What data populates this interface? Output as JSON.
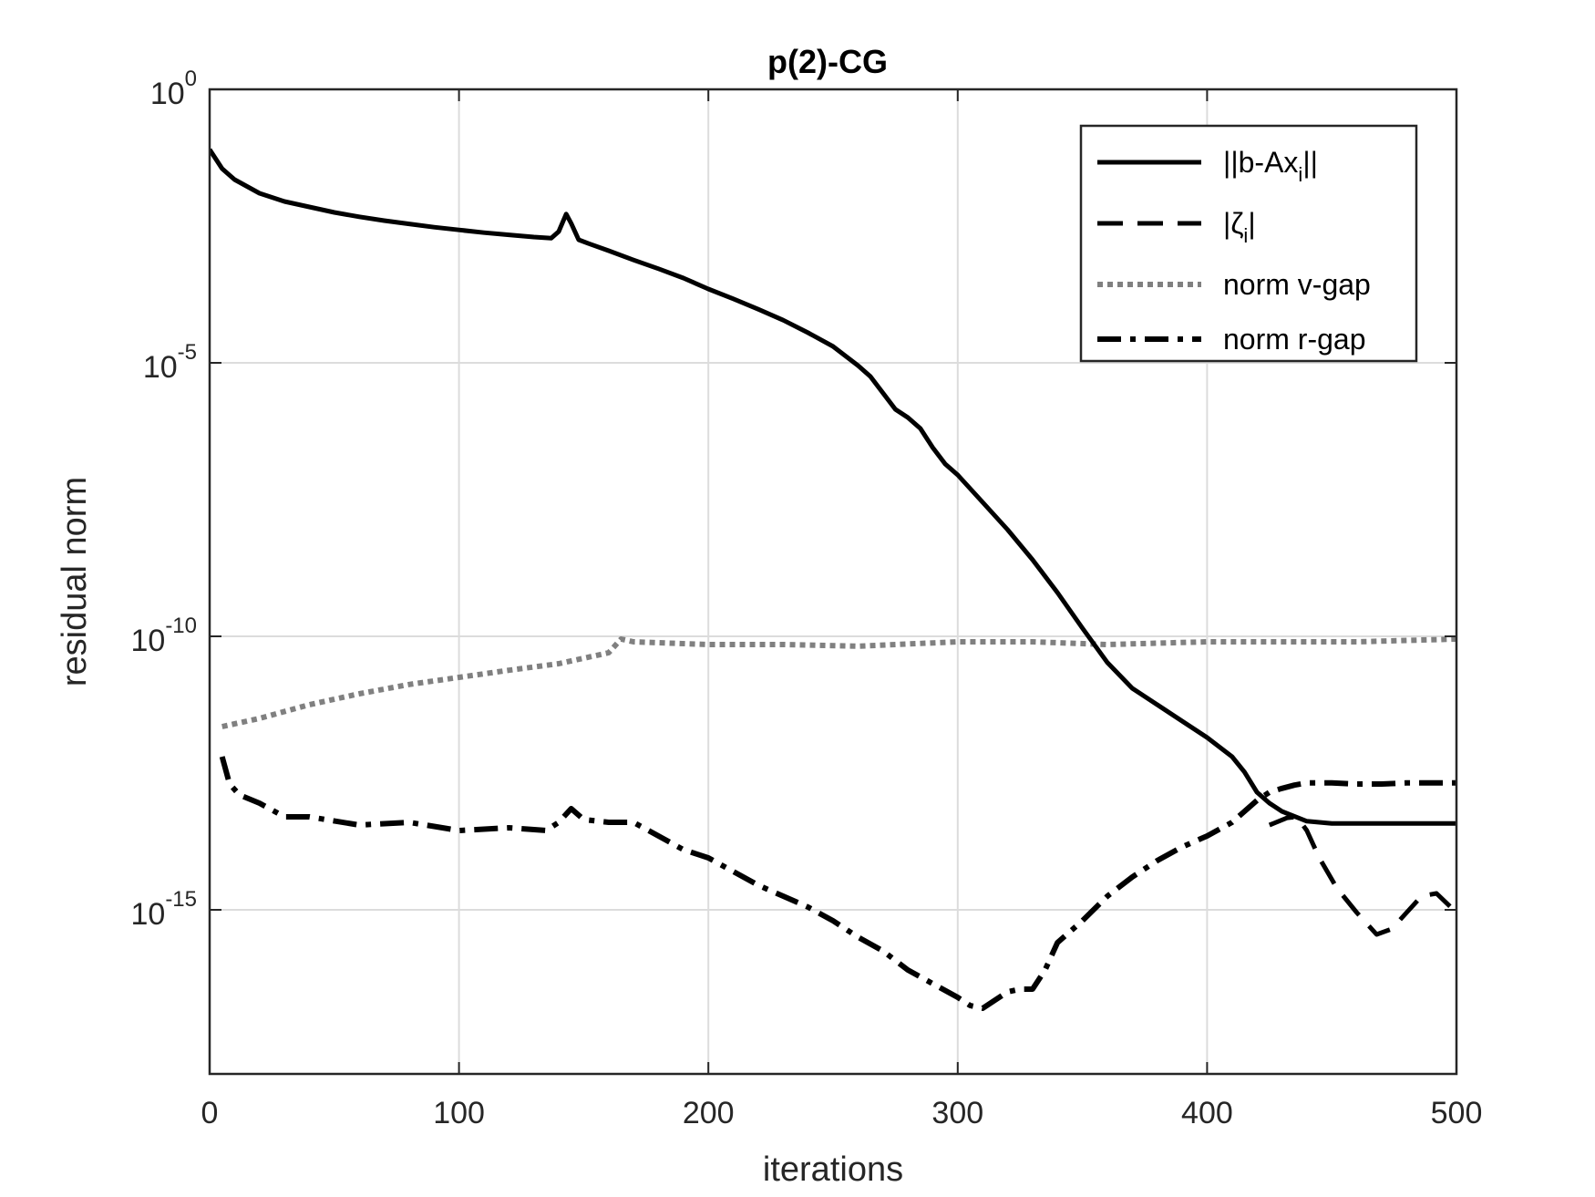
{
  "chart_data": {
    "type": "line",
    "title": "p(2)-CG",
    "xlabel": "iterations",
    "ylabel": "residual norm",
    "xlim": [
      0,
      500
    ],
    "ylim_log10": [
      -18,
      0
    ],
    "x_ticks": [
      0,
      100,
      200,
      300,
      400,
      500
    ],
    "x_tick_labels": [
      "0",
      "100",
      "200",
      "300",
      "400",
      "500"
    ],
    "y_ticks_log10": [
      0,
      -5,
      -10,
      -15
    ],
    "y_tick_labels": [
      {
        "base": "10",
        "exp": "0"
      },
      {
        "base": "10",
        "exp": "-5"
      },
      {
        "base": "10",
        "exp": "-10"
      },
      {
        "base": "10",
        "exp": "-15"
      }
    ],
    "grid": true,
    "legend_position": "top-right",
    "legend": [
      {
        "key": "residual",
        "text": "||b-Ax",
        "sub": "i",
        "suffix": "||"
      },
      {
        "key": "zeta",
        "text": "|ζ",
        "sub": "i",
        "suffix": "|"
      },
      {
        "key": "vgap",
        "text": "norm v-gap",
        "sub": "",
        "suffix": ""
      },
      {
        "key": "rgap",
        "text": "norm r-gap",
        "sub": "",
        "suffix": ""
      }
    ],
    "series": [
      {
        "name": "||b-Ax_i||",
        "key": "residual",
        "style": "solid",
        "color": "#000000",
        "x": [
          0,
          5,
          10,
          20,
          30,
          40,
          50,
          60,
          70,
          80,
          90,
          100,
          110,
          120,
          130,
          137,
          140,
          143,
          145,
          148,
          152,
          160,
          170,
          180,
          190,
          200,
          210,
          220,
          230,
          240,
          250,
          260,
          265,
          270,
          275,
          280,
          285,
          290,
          295,
          300,
          310,
          320,
          330,
          340,
          350,
          360,
          370,
          380,
          390,
          400,
          410,
          415,
          420,
          425,
          430,
          440,
          450,
          460,
          470,
          480,
          490,
          500
        ],
        "y_log10": [
          -1.1,
          -1.45,
          -1.65,
          -1.9,
          -2.05,
          -2.15,
          -2.25,
          -2.33,
          -2.4,
          -2.46,
          -2.52,
          -2.57,
          -2.62,
          -2.66,
          -2.7,
          -2.72,
          -2.6,
          -2.28,
          -2.45,
          -2.75,
          -2.82,
          -2.95,
          -3.12,
          -3.28,
          -3.45,
          -3.65,
          -3.83,
          -4.02,
          -4.22,
          -4.45,
          -4.7,
          -5.05,
          -5.25,
          -5.55,
          -5.85,
          -6.0,
          -6.2,
          -6.55,
          -6.85,
          -7.05,
          -7.55,
          -8.05,
          -8.6,
          -9.2,
          -9.85,
          -10.48,
          -10.95,
          -11.25,
          -11.55,
          -11.85,
          -12.2,
          -12.48,
          -12.85,
          -13.05,
          -13.2,
          -13.38,
          -13.42,
          -13.42,
          -13.42,
          -13.42,
          -13.42,
          -13.42
        ]
      },
      {
        "name": "|ζ_i|",
        "key": "zeta",
        "style": "dashed",
        "color": "#000000",
        "x": [
          425,
          432,
          436,
          440,
          445,
          452,
          460,
          468,
          474,
          480,
          486,
          492,
          500
        ],
        "y_log10": [
          -13.45,
          -13.32,
          -13.3,
          -13.55,
          -14.05,
          -14.6,
          -15.05,
          -15.45,
          -15.35,
          -15.05,
          -14.75,
          -14.7,
          -15.05
        ]
      },
      {
        "name": "norm v-gap",
        "key": "vgap",
        "style": "dotted",
        "color": "#808080",
        "x": [
          5,
          20,
          40,
          60,
          80,
          100,
          120,
          140,
          160,
          165,
          170,
          200,
          230,
          260,
          300,
          330,
          360,
          400,
          430,
          460,
          500
        ],
        "y_log10": [
          -11.65,
          -11.5,
          -11.25,
          -11.05,
          -10.88,
          -10.75,
          -10.62,
          -10.5,
          -10.3,
          -10.05,
          -10.1,
          -10.15,
          -10.15,
          -10.18,
          -10.1,
          -10.1,
          -10.15,
          -10.1,
          -10.1,
          -10.1,
          -10.05
        ]
      },
      {
        "name": "norm r-gap",
        "key": "rgap",
        "style": "dashdot",
        "color": "#000000",
        "x": [
          5,
          8,
          12,
          20,
          30,
          40,
          60,
          80,
          100,
          120,
          135,
          140,
          145,
          150,
          160,
          170,
          180,
          190,
          200,
          210,
          220,
          230,
          240,
          250,
          260,
          270,
          280,
          290,
          300,
          305,
          310,
          315,
          320,
          325,
          330,
          335,
          340,
          350,
          360,
          370,
          380,
          390,
          400,
          410,
          420,
          425,
          430,
          435,
          440,
          450,
          460,
          470,
          480,
          490,
          500
        ],
        "y_log10": [
          -12.2,
          -12.7,
          -12.9,
          -13.05,
          -13.3,
          -13.3,
          -13.45,
          -13.4,
          -13.55,
          -13.5,
          -13.55,
          -13.4,
          -13.15,
          -13.35,
          -13.4,
          -13.4,
          -13.65,
          -13.9,
          -14.05,
          -14.3,
          -14.55,
          -14.75,
          -14.95,
          -15.2,
          -15.5,
          -15.75,
          -16.1,
          -16.35,
          -16.6,
          -16.75,
          -16.8,
          -16.65,
          -16.5,
          -16.45,
          -16.45,
          -16.1,
          -15.6,
          -15.2,
          -14.75,
          -14.4,
          -14.1,
          -13.85,
          -13.65,
          -13.4,
          -13.0,
          -12.85,
          -12.78,
          -12.72,
          -12.68,
          -12.68,
          -12.7,
          -12.7,
          -12.68,
          -12.68,
          -12.68
        ]
      }
    ]
  }
}
